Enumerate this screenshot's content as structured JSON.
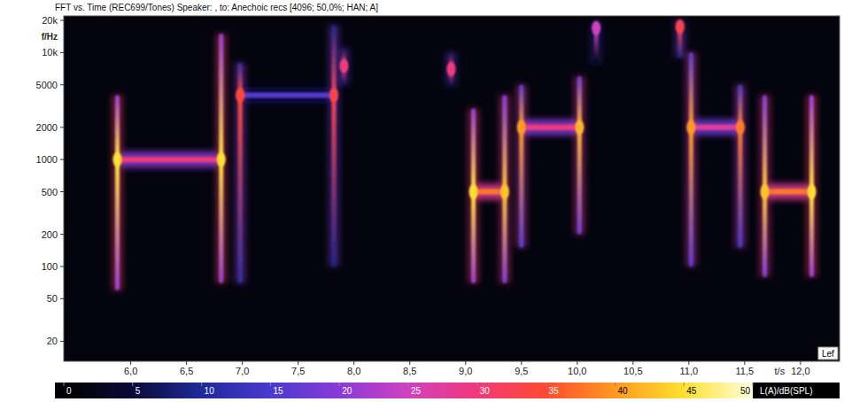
{
  "chart_data": {
    "type": "spectrogram",
    "title": "FFT vs. Time (REC699/Tones) Speaker: , to: Anechoic recs [4096; 50,0%; HAN; A]",
    "x_label": "t/s",
    "y_label": "f/Hz",
    "log": "y",
    "grid": false,
    "xlim": [
      5.4,
      12.35
    ],
    "xticks": [
      {
        "value": 6,
        "label": "6,0"
      },
      {
        "value": 6.5,
        "label": "6,5"
      },
      {
        "value": 7,
        "label": "7,0"
      },
      {
        "value": 7.5,
        "label": "7,5"
      },
      {
        "value": 8,
        "label": "8,0"
      },
      {
        "value": 8.5,
        "label": "8,5"
      },
      {
        "value": 9,
        "label": "9,0"
      },
      {
        "value": 9.5,
        "label": "9,5"
      },
      {
        "value": 10,
        "label": "10,0"
      },
      {
        "value": 10.5,
        "label": "10,5"
      },
      {
        "value": 11,
        "label": "11,0"
      },
      {
        "value": 11.5,
        "label": "11,5"
      },
      {
        "value": 12,
        "label": "12,0"
      }
    ],
    "ylim": [
      13,
      22000
    ],
    "yticks": [
      20,
      50,
      100,
      200,
      500,
      1000,
      2000,
      5000,
      {
        "value": 10000,
        "label": "10k"
      },
      {
        "value": 20000,
        "label": "20k"
      }
    ],
    "tones": [
      {
        "start": 5.89,
        "end": 6.8,
        "freq": 1000,
        "level": 30
      },
      {
        "start": 6.98,
        "end": 7.82,
        "freq": 4000,
        "level": 16
      },
      {
        "start": 9.07,
        "end": 9.35,
        "freq": 500,
        "level": 38
      },
      {
        "start": 9.5,
        "end": 10.02,
        "freq": 2000,
        "level": 30
      },
      {
        "start": 11.02,
        "end": 11.46,
        "freq": 2000,
        "level": 28
      },
      {
        "start": 11.68,
        "end": 12.1,
        "freq": 500,
        "level": 38
      }
    ],
    "transients": [
      {
        "t": 5.88,
        "f_low": 60,
        "f_high": 4000,
        "peak_freq": 1000,
        "level": 45
      },
      {
        "t": 6.81,
        "f_low": 70,
        "f_high": 15000,
        "peak_freq": 1000,
        "level": 45
      },
      {
        "t": 6.98,
        "f_low": 70,
        "f_high": 8000,
        "peak_freq": 4000,
        "level": 35
      },
      {
        "t": 7.82,
        "f_low": 100,
        "f_high": 18000,
        "peak_freq": 4000,
        "level": 33
      },
      {
        "t": 7.91,
        "f_low": 5000,
        "f_high": 11000,
        "peak_freq": 7500,
        "level": 30
      },
      {
        "t": 8.87,
        "f_low": 5000,
        "f_high": 10000,
        "peak_freq": 7000,
        "level": 30
      },
      {
        "t": 9.07,
        "f_low": 70,
        "f_high": 3000,
        "peak_freq": 500,
        "level": 45
      },
      {
        "t": 9.35,
        "f_low": 70,
        "f_high": 4000,
        "peak_freq": 500,
        "level": 43
      },
      {
        "t": 9.5,
        "f_low": 150,
        "f_high": 5000,
        "peak_freq": 2000,
        "level": 40
      },
      {
        "t": 10.02,
        "f_low": 200,
        "f_high": 6000,
        "peak_freq": 2000,
        "level": 42
      },
      {
        "t": 10.17,
        "f_low": 8000,
        "f_high": 19000,
        "peak_freq": 17000,
        "level": 25
      },
      {
        "t": 10.92,
        "f_low": 9000,
        "f_high": 20000,
        "peak_freq": 17500,
        "level": 33
      },
      {
        "t": 11.02,
        "f_low": 100,
        "f_high": 10000,
        "peak_freq": 2000,
        "level": 40
      },
      {
        "t": 11.46,
        "f_low": 150,
        "f_high": 5000,
        "peak_freq": 2000,
        "level": 38
      },
      {
        "t": 11.68,
        "f_low": 80,
        "f_high": 4000,
        "peak_freq": 500,
        "level": 43
      },
      {
        "t": 12.1,
        "f_low": 80,
        "f_high": 4000,
        "peak_freq": 500,
        "level": 45
      }
    ],
    "colorbar": {
      "label": "L(A)/dB(SPL)",
      "range": [
        0,
        50
      ],
      "ticks": [
        0,
        5,
        10,
        15,
        20,
        25,
        30,
        35,
        40,
        45,
        50
      ]
    },
    "channel_label": "Lef"
  }
}
